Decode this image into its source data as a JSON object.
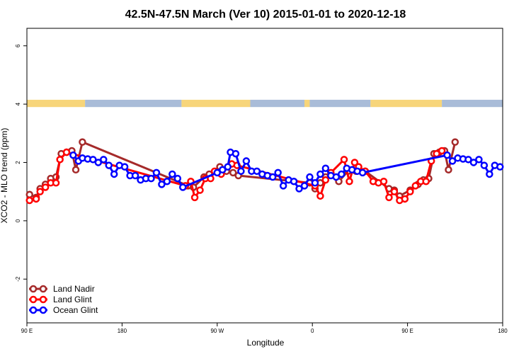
{
  "chart_data": {
    "type": "line",
    "title": "42.5N-47.5N March (Ver 10)   2015-01-01 to 2020-12-18",
    "xlabel": "Longitude",
    "ylabel": "XCO2 - MLO trend (ppm)",
    "xlim": [
      0,
      360
    ],
    "ylim": [
      -3.5,
      6.6
    ],
    "x_ticks": [
      {
        "pos": 0,
        "label": "90 E"
      },
      {
        "pos": 72,
        "label": "180"
      },
      {
        "pos": 144,
        "label": "90 W"
      },
      {
        "pos": 216,
        "label": "0"
      },
      {
        "pos": 288,
        "label": "90 E"
      },
      {
        "pos": 360,
        "label": "180"
      }
    ],
    "y_ticks": [
      {
        "pos": -2,
        "label": "-2"
      },
      {
        "pos": 0,
        "label": "0"
      },
      {
        "pos": 2,
        "label": "2"
      },
      {
        "pos": 4,
        "label": "4"
      },
      {
        "pos": 6,
        "label": "6"
      }
    ],
    "surface_band": {
      "y_range": [
        3.9,
        4.15
      ],
      "land_color": "#F7D57A",
      "ocean_color": "#A9BCD8",
      "segments": [
        {
          "type": "land",
          "x": [
            0,
            44
          ]
        },
        {
          "type": "ocean",
          "x": [
            44,
            117
          ]
        },
        {
          "type": "land",
          "x": [
            117,
            169
          ]
        },
        {
          "type": "ocean",
          "x": [
            169,
            210
          ]
        },
        {
          "type": "land",
          "x": [
            210,
            214
          ]
        },
        {
          "type": "ocean",
          "x": [
            214,
            260
          ]
        },
        {
          "type": "land",
          "x": [
            260,
            314
          ]
        },
        {
          "type": "ocean",
          "x": [
            314,
            360
          ]
        }
      ]
    },
    "series": [
      {
        "name": "Land Nadir",
        "color": "#A52A2A",
        "points": [
          [
            2,
            0.9
          ],
          [
            7,
            0.8
          ],
          [
            10,
            1.1
          ],
          [
            14,
            1.25
          ],
          [
            18,
            1.45
          ],
          [
            22,
            1.5
          ],
          [
            26,
            2.3
          ],
          [
            30,
            2.35
          ],
          [
            34,
            2.4
          ],
          [
            37,
            1.75
          ],
          [
            42,
            2.7
          ],
          [
            122,
            1.2
          ],
          [
            126,
            1.15
          ],
          [
            134,
            1.5
          ],
          [
            138,
            1.6
          ],
          [
            146,
            1.85
          ],
          [
            151,
            1.7
          ],
          [
            156,
            1.65
          ],
          [
            160,
            1.55
          ],
          [
            214,
            1.3
          ],
          [
            218,
            1.1
          ],
          [
            222,
            1.3
          ],
          [
            226,
            1.5
          ],
          [
            230,
            1.6
          ],
          [
            236,
            1.35
          ],
          [
            243,
            1.7
          ],
          [
            249,
            1.7
          ],
          [
            256,
            1.7
          ],
          [
            274,
            1.1
          ],
          [
            278,
            1.05
          ],
          [
            282,
            0.85
          ],
          [
            290,
            1.05
          ],
          [
            296,
            1.25
          ],
          [
            300,
            1.4
          ],
          [
            304,
            1.45
          ],
          [
            308,
            2.3
          ],
          [
            312,
            2.35
          ],
          [
            316,
            2.4
          ],
          [
            319,
            1.75
          ],
          [
            324,
            2.7
          ]
        ]
      },
      {
        "name": "Land Glint",
        "color": "#FF0000",
        "points": [
          [
            2,
            0.7
          ],
          [
            7,
            0.75
          ],
          [
            10,
            1.0
          ],
          [
            14,
            1.15
          ],
          [
            18,
            1.3
          ],
          [
            22,
            1.3
          ],
          [
            25,
            2.1
          ],
          [
            30,
            2.35
          ],
          [
            120,
            1.2
          ],
          [
            124,
            1.35
          ],
          [
            127,
            0.8
          ],
          [
            131,
            1.05
          ],
          [
            135,
            1.45
          ],
          [
            139,
            1.45
          ],
          [
            142,
            1.7
          ],
          [
            147,
            1.6
          ],
          [
            155,
            1.95
          ],
          [
            159,
            1.9
          ],
          [
            218,
            1.2
          ],
          [
            222,
            0.85
          ],
          [
            226,
            1.4
          ],
          [
            230,
            1.65
          ],
          [
            240,
            2.1
          ],
          [
            244,
            1.35
          ],
          [
            248,
            2.0
          ],
          [
            251,
            1.85
          ],
          [
            256,
            1.7
          ],
          [
            262,
            1.35
          ],
          [
            266,
            1.3
          ],
          [
            270,
            1.35
          ],
          [
            274,
            0.8
          ],
          [
            278,
            1.0
          ],
          [
            282,
            0.7
          ],
          [
            286,
            0.75
          ],
          [
            290,
            1.0
          ],
          [
            294,
            1.2
          ],
          [
            298,
            1.35
          ],
          [
            302,
            1.35
          ],
          [
            306,
            2.05
          ],
          [
            310,
            2.3
          ],
          [
            314,
            2.4
          ]
        ]
      },
      {
        "name": "Ocean Glint",
        "color": "#0000FF",
        "points": [
          [
            35,
            2.25
          ],
          [
            39,
            2.05
          ],
          [
            42,
            2.15
          ],
          [
            46,
            2.12
          ],
          [
            50,
            2.1
          ],
          [
            54,
            2.0
          ],
          [
            58,
            2.1
          ],
          [
            62,
            1.9
          ],
          [
            66,
            1.6
          ],
          [
            70,
            1.9
          ],
          [
            74,
            1.85
          ],
          [
            78,
            1.55
          ],
          [
            82,
            1.55
          ],
          [
            86,
            1.4
          ],
          [
            90,
            1.45
          ],
          [
            94,
            1.45
          ],
          [
            98,
            1.65
          ],
          [
            102,
            1.25
          ],
          [
            106,
            1.35
          ],
          [
            110,
            1.6
          ],
          [
            114,
            1.45
          ],
          [
            118,
            1.15
          ],
          [
            144,
            1.65
          ],
          [
            148,
            1.75
          ],
          [
            152,
            1.85
          ],
          [
            154,
            2.35
          ],
          [
            158,
            2.3
          ],
          [
            162,
            1.7
          ],
          [
            166,
            2.05
          ],
          [
            170,
            1.7
          ],
          [
            174,
            1.7
          ],
          [
            178,
            1.6
          ],
          [
            182,
            1.55
          ],
          [
            186,
            1.5
          ],
          [
            190,
            1.65
          ],
          [
            194,
            1.2
          ],
          [
            198,
            1.4
          ],
          [
            202,
            1.35
          ],
          [
            206,
            1.1
          ],
          [
            210,
            1.2
          ],
          [
            214,
            1.5
          ],
          [
            218,
            1.3
          ],
          [
            222,
            1.6
          ],
          [
            226,
            1.8
          ],
          [
            230,
            1.55
          ],
          [
            234,
            1.5
          ],
          [
            238,
            1.6
          ],
          [
            242,
            1.8
          ],
          [
            246,
            1.75
          ],
          [
            250,
            1.7
          ],
          [
            254,
            1.65
          ],
          [
            318,
            2.25
          ],
          [
            322,
            2.05
          ],
          [
            326,
            2.15
          ],
          [
            330,
            2.12
          ],
          [
            334,
            2.1
          ],
          [
            338,
            2.0
          ],
          [
            342,
            2.1
          ],
          [
            346,
            1.9
          ],
          [
            350,
            1.6
          ],
          [
            354,
            1.9
          ],
          [
            358,
            1.85
          ]
        ]
      }
    ],
    "legend": {
      "position": "bottom-left",
      "entries": [
        "Land Nadir",
        "Land Glint",
        "Ocean Glint"
      ]
    }
  }
}
